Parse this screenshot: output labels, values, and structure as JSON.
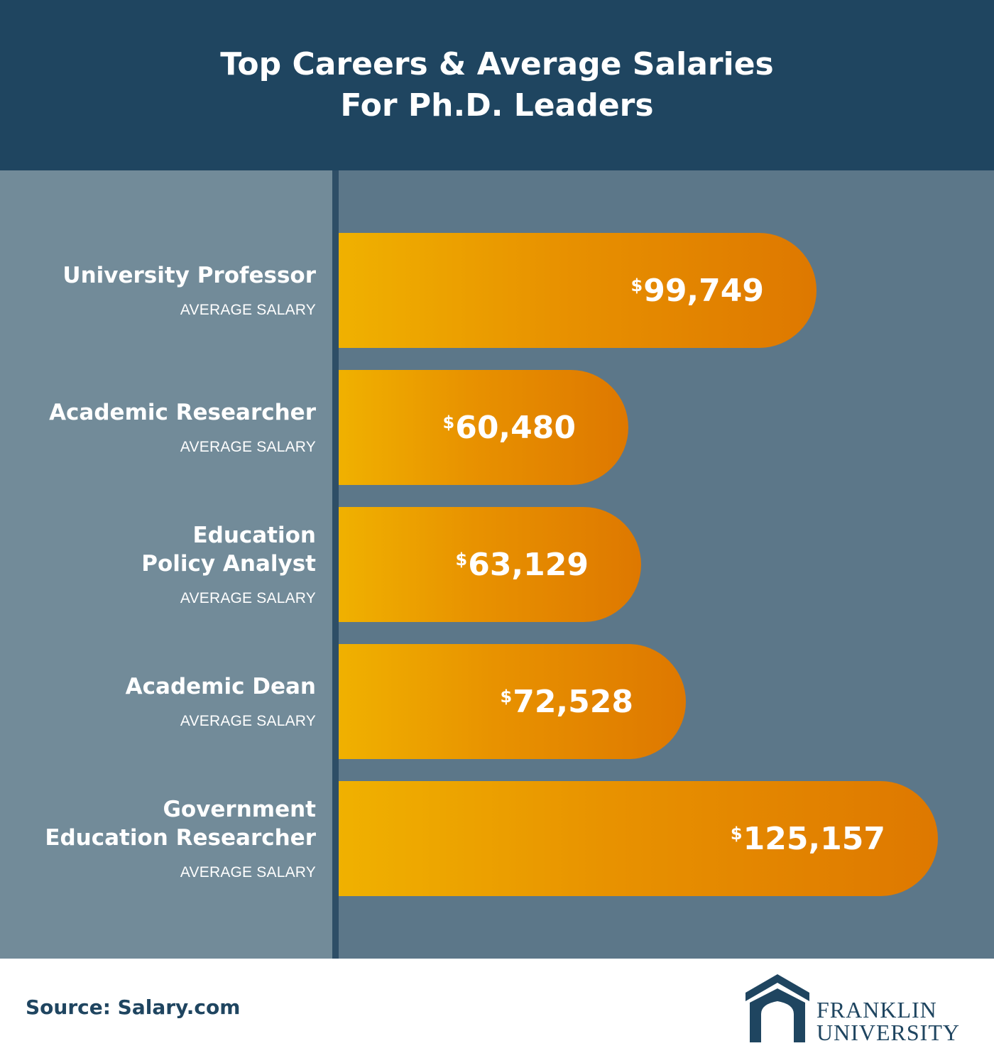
{
  "header": {
    "title_line1": "Top Careers & Average Salaries",
    "title_line2": "For Ph.D. Leaders",
    "background": "#1f4560"
  },
  "chart_data": {
    "type": "bar",
    "orientation": "horizontal",
    "title": "Top Careers & Average Salaries For Ph.D. Leaders",
    "value_prefix": "$",
    "sub_label": "AVERAGE SALARY",
    "categories": [
      [
        "University Professor"
      ],
      [
        "Academic Researcher"
      ],
      [
        "Education",
        "Policy Analyst"
      ],
      [
        "Academic Dean"
      ],
      [
        "Government",
        "Education Researcher"
      ]
    ],
    "values": [
      99749,
      60480,
      63129,
      72528,
      125157
    ],
    "value_labels": [
      "99,749",
      "60,480",
      "63,129",
      "72,528",
      "125,157"
    ],
    "bar_colors": [
      "#f0b100",
      "#de7800"
    ],
    "panel_colors": {
      "left": "#728b99",
      "right": "#5c7789",
      "axis": "#2e4e66"
    }
  },
  "footer": {
    "source": "Source: Salary.com",
    "logo_line1": "FRANKLIN",
    "logo_line2": "UNIVERSITY",
    "logo_color": "#1f4560"
  }
}
